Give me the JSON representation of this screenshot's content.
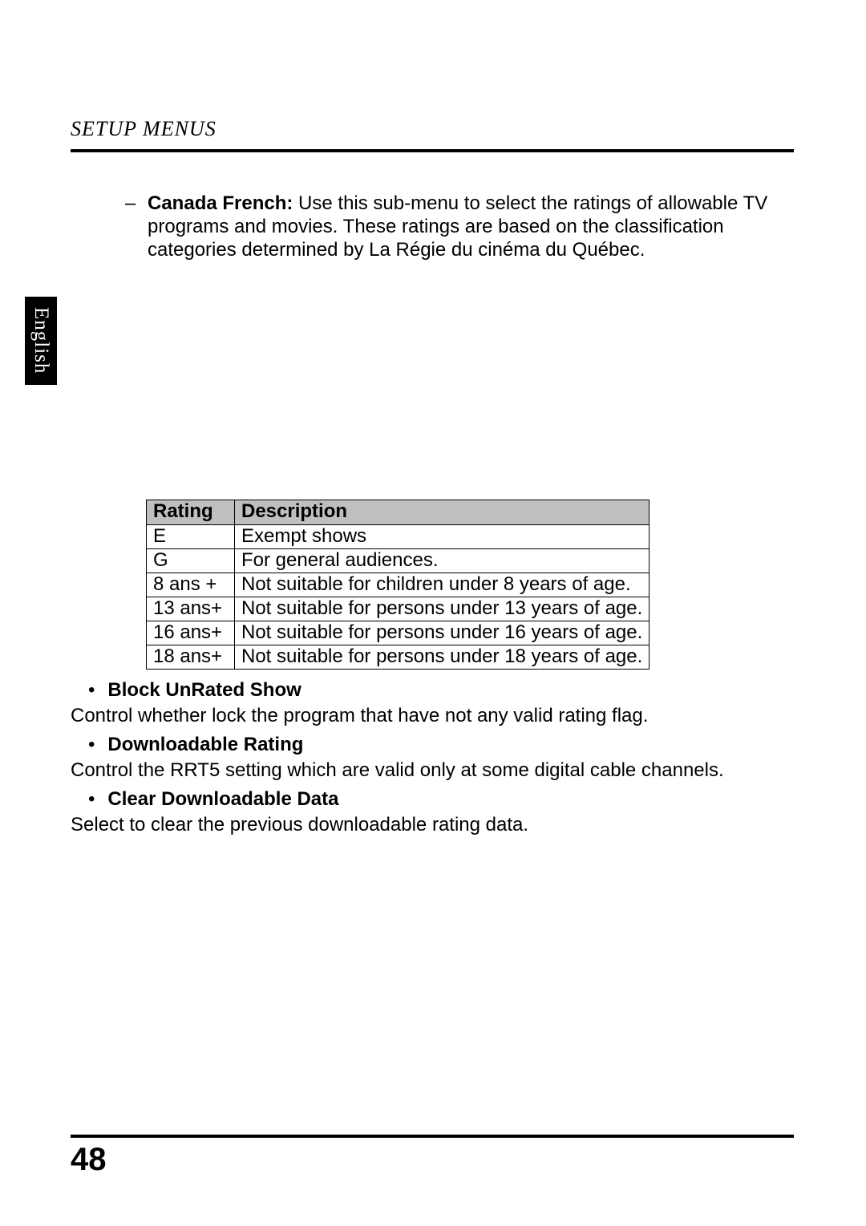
{
  "header": {
    "section_title": "SETUP MENUS"
  },
  "language_tab": "English",
  "canada_french": {
    "dash": "–",
    "label": "Canada French: ",
    "text": "Use this sub-menu to select the ratings of allowable TV programs and movies. These ratings are based on the classification categories determined by La Régie du cinéma du Québec."
  },
  "ratings_table": {
    "columns": [
      "Rating",
      "Description"
    ],
    "rows": [
      [
        "E",
        "Exempt shows"
      ],
      [
        "G",
        "For general audiences."
      ],
      [
        "8 ans +",
        "Not suitable for children under 8 years of age."
      ],
      [
        "13 ans+",
        "Not suitable for persons under 13 years of age."
      ],
      [
        "16 ans+",
        "Not suitable for persons under 16 years of age."
      ],
      [
        "18 ans+",
        "Not suitable for persons under 18 years of age."
      ]
    ],
    "header_bg": "#bfbfbf",
    "border_color": "#000000"
  },
  "bullets": {
    "block_unrated": {
      "title": "Block UnRated Show",
      "desc": "Control whether lock the program that have not any valid rating flag."
    },
    "downloadable_rating": {
      "title": "Downloadable Rating",
      "desc": "Control the RRT5 setting which are valid only at some digital cable channels."
    },
    "clear_downloadable": {
      "title": "Clear Downloadable Data",
      "desc": "Select to clear the previous downloadable rating data."
    },
    "bullet_char": "•"
  },
  "page_number": "48"
}
